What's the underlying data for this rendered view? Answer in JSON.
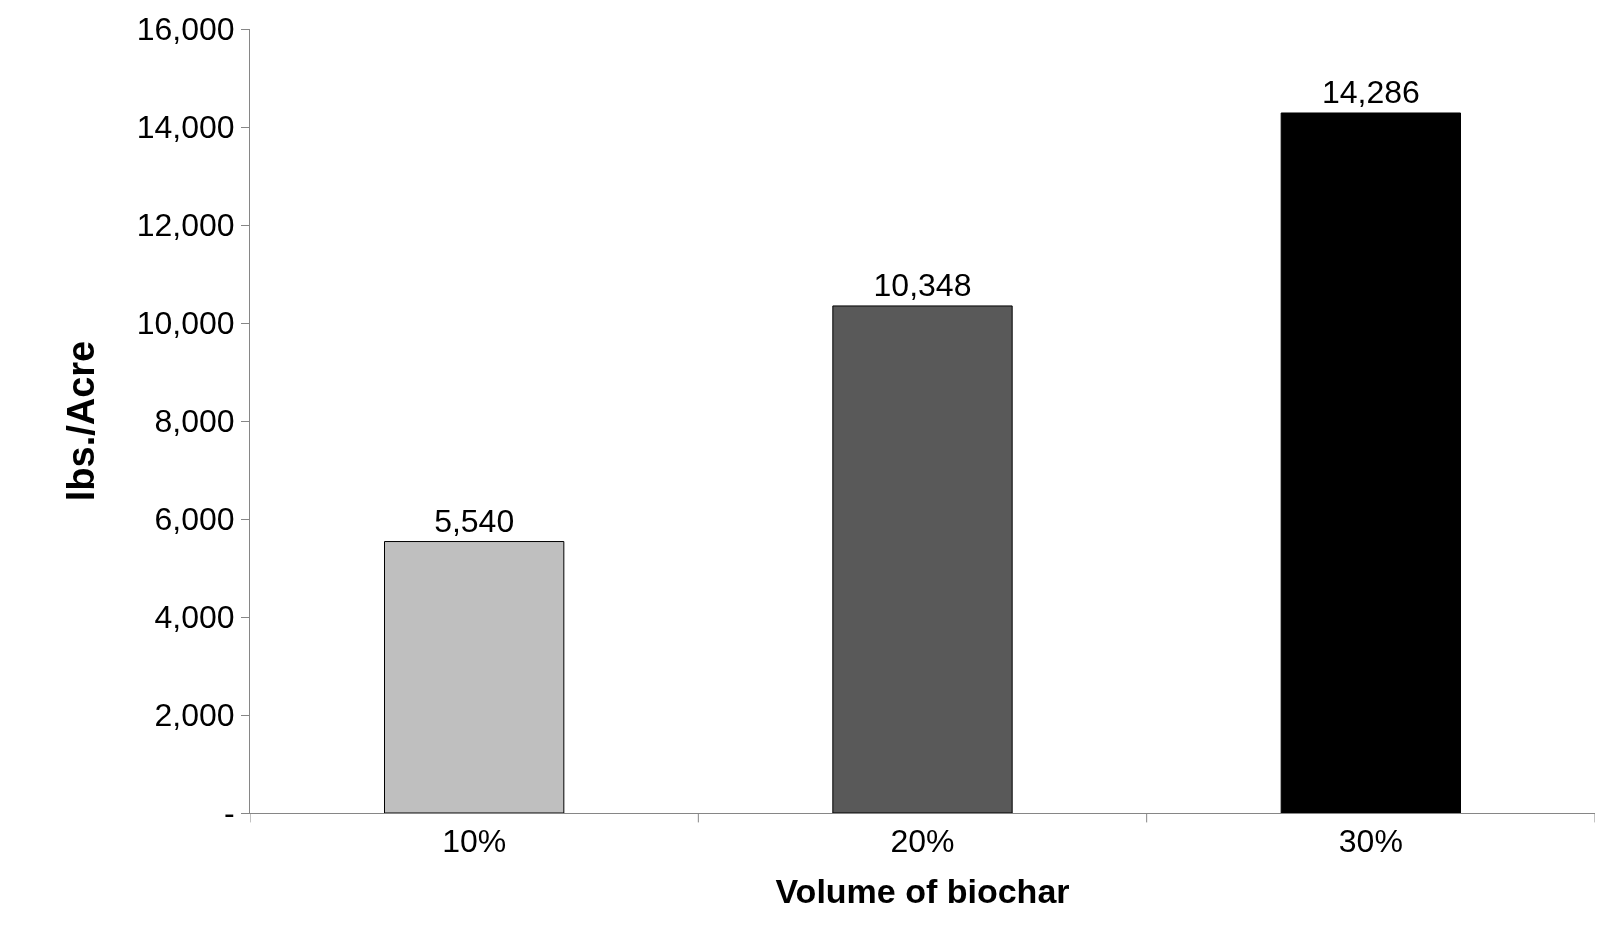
{
  "chart_data": {
    "type": "bar",
    "xlabel": "Volume of biochar",
    "ylabel": "lbs./Acre",
    "categories": [
      "10%",
      "20%",
      "30%"
    ],
    "values": [
      5540,
      10348,
      14286
    ],
    "colors": [
      "#bfbfbf",
      "#595959",
      "#000000"
    ],
    "value_labels": [
      "5,540",
      "10,348",
      "14,286"
    ],
    "ylim": [
      0,
      16000
    ],
    "yticks": [
      {
        "value": 0,
        "label": "-"
      },
      {
        "value": 2000,
        "label": "2,000"
      },
      {
        "value": 4000,
        "label": "4,000"
      },
      {
        "value": 6000,
        "label": "6,000"
      },
      {
        "value": 8000,
        "label": "8,000"
      },
      {
        "value": 10000,
        "label": "10,000"
      },
      {
        "value": 12000,
        "label": "12,000"
      },
      {
        "value": 14000,
        "label": "14,000"
      },
      {
        "value": 16000,
        "label": "16,000"
      }
    ],
    "grid": false
  }
}
